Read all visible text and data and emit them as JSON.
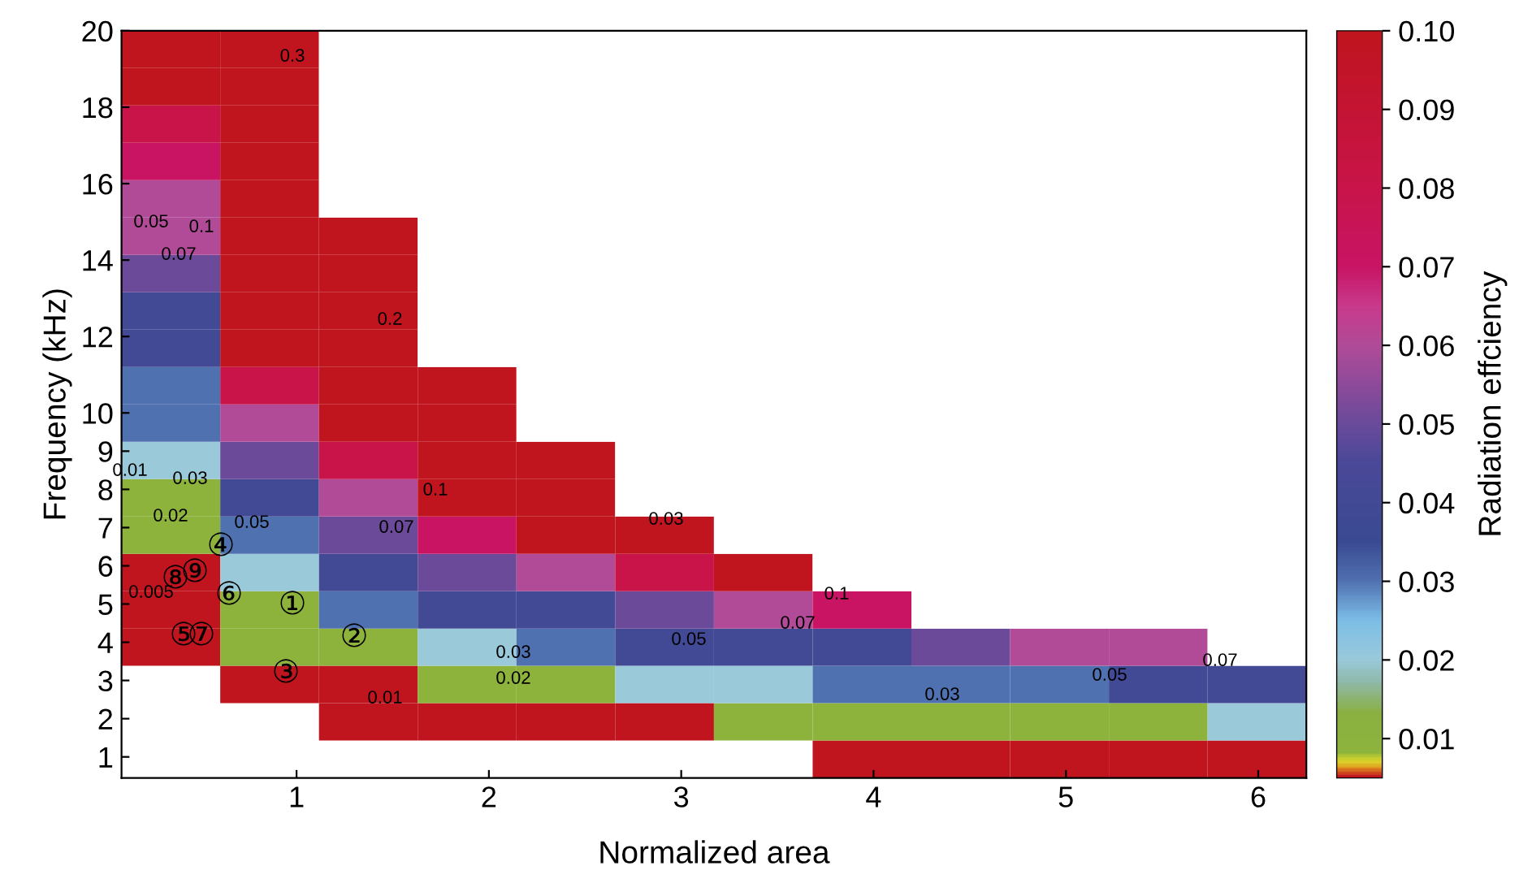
{
  "chart_data": {
    "type": "heatmap",
    "xlabel": "Normalized area",
    "ylabel": "Frequency (kHz)",
    "clabel": "Radiation effciency",
    "xlim": [
      0.09,
      6.25
    ],
    "ylim": [
      0.45,
      20
    ],
    "xticks": [
      1,
      2,
      3,
      4,
      5,
      6
    ],
    "yticks": [
      1,
      2,
      3,
      4,
      5,
      6,
      7,
      8,
      9,
      10,
      12,
      14,
      16,
      18,
      20
    ],
    "clim": [
      0.005,
      0.1
    ],
    "cticks": [
      0.01,
      0.02,
      0.03,
      0.04,
      0.05,
      0.06,
      0.07,
      0.08,
      0.09,
      {
        "value": 0.1,
        "label": "0.10"
      }
    ],
    "cells": [
      [
        0.1,
        0.1,
        null,
        null,
        null,
        null,
        null,
        null,
        null,
        null,
        null,
        null
      ],
      [
        0.1,
        0.1,
        null,
        null,
        null,
        null,
        null,
        null,
        null,
        null,
        null,
        null
      ],
      [
        0.08,
        0.1,
        null,
        null,
        null,
        null,
        null,
        null,
        null,
        null,
        null,
        null
      ],
      [
        0.07,
        0.1,
        null,
        null,
        null,
        null,
        null,
        null,
        null,
        null,
        null,
        null
      ],
      [
        0.06,
        0.1,
        null,
        null,
        null,
        null,
        null,
        null,
        null,
        null,
        null,
        null
      ],
      [
        0.06,
        0.1,
        0.1,
        null,
        null,
        null,
        null,
        null,
        null,
        null,
        null,
        null
      ],
      [
        0.05,
        0.1,
        0.1,
        null,
        null,
        null,
        null,
        null,
        null,
        null,
        null,
        null
      ],
      [
        0.04,
        0.1,
        0.1,
        null,
        null,
        null,
        null,
        null,
        null,
        null,
        null,
        null
      ],
      [
        0.04,
        0.1,
        0.1,
        null,
        null,
        null,
        null,
        null,
        null,
        null,
        null,
        null
      ],
      [
        0.03,
        0.08,
        0.1,
        0.1,
        null,
        null,
        null,
        null,
        null,
        null,
        null,
        null
      ],
      [
        0.03,
        0.06,
        0.1,
        0.1,
        null,
        null,
        null,
        null,
        null,
        null,
        null,
        null
      ],
      [
        0.02,
        0.05,
        0.08,
        0.1,
        0.1,
        null,
        null,
        null,
        null,
        null,
        null,
        null
      ],
      [
        0.009,
        0.04,
        0.06,
        0.1,
        0.1,
        null,
        null,
        null,
        null,
        null,
        null,
        null
      ],
      [
        0.009,
        0.03,
        0.05,
        0.07,
        0.1,
        0.1,
        null,
        null,
        null,
        null,
        null,
        null
      ],
      [
        0.005,
        0.02,
        0.04,
        0.05,
        0.06,
        0.08,
        0.1,
        null,
        null,
        null,
        null,
        null
      ],
      [
        0.005,
        0.009,
        0.03,
        0.04,
        0.04,
        0.05,
        0.06,
        0.07,
        null,
        null,
        null,
        null
      ],
      [
        0.005,
        0.009,
        0.009,
        0.02,
        0.03,
        0.04,
        0.04,
        0.04,
        0.05,
        0.06,
        0.06,
        null
      ],
      [
        null,
        0.005,
        0.005,
        0.009,
        0.009,
        0.02,
        0.02,
        0.03,
        0.03,
        0.03,
        0.04,
        0.04
      ],
      [
        null,
        null,
        0.005,
        0.005,
        0.005,
        0.005,
        0.009,
        0.009,
        0.009,
        0.009,
        0.009,
        0.02
      ],
      [
        null,
        null,
        null,
        null,
        null,
        null,
        null,
        0.005,
        0.005,
        0.005,
        0.005,
        0.005
      ]
    ],
    "annotations": [
      "0.3",
      "0.2",
      "0.1",
      "0.07",
      "0.05",
      "0.03",
      "0.02",
      "0.01",
      "0.005",
      "0.1",
      "0.07",
      "0.05",
      "0.03",
      "0.1",
      "0.07",
      "0.05",
      "0.03",
      "0.02",
      "0.01",
      "0.03",
      "0.05",
      "0.07",
      "①",
      "②",
      "③",
      "④",
      "⑤",
      "⑥",
      "⑦",
      "⑧",
      "⑨"
    ]
  }
}
